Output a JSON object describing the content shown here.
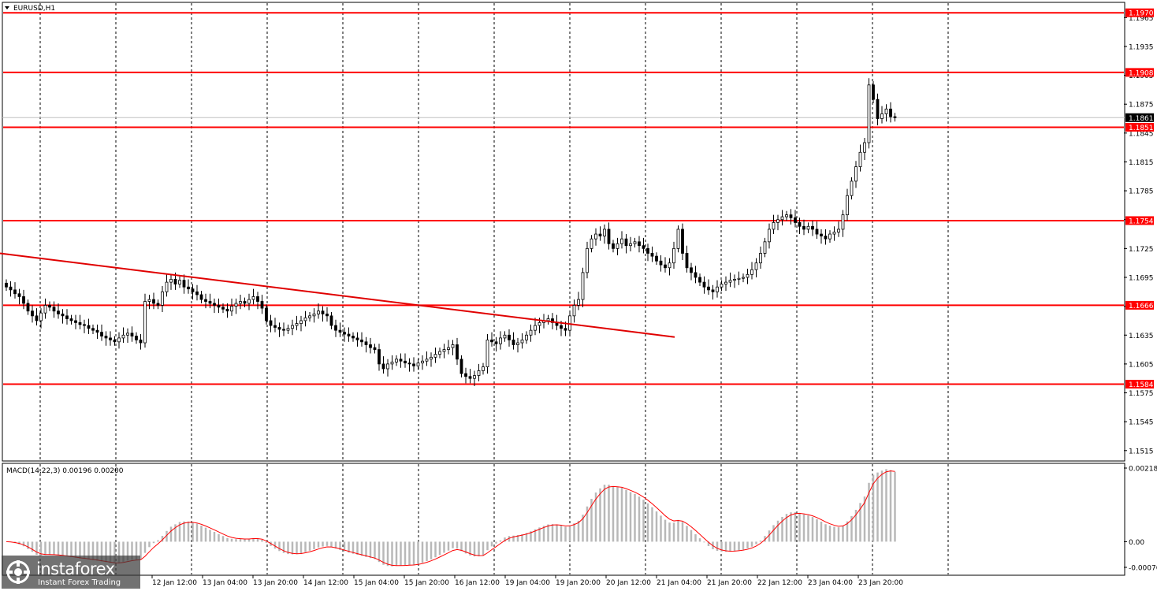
{
  "chart_data": [
    {
      "type": "candlestick",
      "symbol_label": "EURUSD,H1",
      "ylim": [
        1.1505,
        1.198
      ],
      "y_ticks": [
        "1.1965",
        "1.1935",
        "1.1905",
        "1.1875",
        "1.1845",
        "1.1815",
        "1.1785",
        "1.1755",
        "1.1725",
        "1.1695",
        "1.1665",
        "1.1635",
        "1.1605",
        "1.1575",
        "1.1545",
        "1.1515"
      ],
      "x_ticks": [
        "12 Jan 12:00",
        "13 Jan 04:00",
        "13 Jan 20:00",
        "14 Jan 12:00",
        "15 Jan 04:00",
        "15 Jan 20:00",
        "16 Jan 12:00",
        "19 Jan 04:00",
        "19 Jan 20:00",
        "20 Jan 12:00",
        "21 Jan 04:00",
        "21 Jan 20:00",
        "22 Jan 12:00",
        "23 Jan 04:00",
        "23 Jan 20:00"
      ],
      "current_price": "1.1861",
      "levels": [
        {
          "label": "1.1970",
          "value": 1.197
        },
        {
          "label": "1.1908",
          "value": 1.1908
        },
        {
          "label": "1.1851",
          "value": 1.1851
        },
        {
          "label": "1.1754",
          "value": 1.1754
        },
        {
          "label": "1.1666",
          "value": 1.1666
        },
        {
          "label": "1.1584",
          "value": 1.1584
        }
      ],
      "trendline": {
        "from": [
          0,
          1.172
        ],
        "to": [
          170,
          1.1633
        ]
      },
      "candles_close": [
        1.1685,
        1.1682,
        1.1678,
        1.1675,
        1.1668,
        1.166,
        1.1655,
        1.165,
        1.1658,
        1.1666,
        1.1664,
        1.166,
        1.1657,
        1.1655,
        1.1652,
        1.165,
        1.1648,
        1.1646,
        1.1645,
        1.1642,
        1.164,
        1.1638,
        1.1634,
        1.1632,
        1.163,
        1.1628,
        1.1632,
        1.1635,
        1.1637,
        1.1634,
        1.163,
        1.1627,
        1.167,
        1.1672,
        1.1668,
        1.1666,
        1.168,
        1.169,
        1.1693,
        1.1688,
        1.1692,
        1.1685,
        1.1683,
        1.168,
        1.1677,
        1.1672,
        1.167,
        1.1668,
        1.1666,
        1.1664,
        1.1662,
        1.166,
        1.1665,
        1.1668,
        1.167,
        1.1668,
        1.1672,
        1.1675,
        1.167,
        1.1663,
        1.165,
        1.1645,
        1.1643,
        1.1641,
        1.164,
        1.1642,
        1.1645,
        1.1647,
        1.165,
        1.1653,
        1.1655,
        1.1657,
        1.166,
        1.1657,
        1.1655,
        1.1645,
        1.164,
        1.1638,
        1.1636,
        1.1634,
        1.1632,
        1.163,
        1.1628,
        1.1625,
        1.1622,
        1.162,
        1.1605,
        1.16,
        1.1605,
        1.1607,
        1.161,
        1.1608,
        1.1606,
        1.1605,
        1.1603,
        1.1606,
        1.1608,
        1.161,
        1.1612,
        1.1615,
        1.1618,
        1.162,
        1.1622,
        1.1625,
        1.161,
        1.1595,
        1.1592,
        1.159,
        1.1593,
        1.1598,
        1.1602,
        1.163,
        1.1628,
        1.1626,
        1.1632,
        1.1635,
        1.163,
        1.1625,
        1.1627,
        1.163,
        1.1635,
        1.164,
        1.1645,
        1.1648,
        1.165,
        1.1652,
        1.1648,
        1.1645,
        1.1642,
        1.164,
        1.1655,
        1.1666,
        1.1672,
        1.17,
        1.1725,
        1.1735,
        1.174,
        1.1738,
        1.1745,
        1.173,
        1.1725,
        1.173,
        1.1735,
        1.1728,
        1.173,
        1.1732,
        1.1728,
        1.1725,
        1.172,
        1.1717,
        1.1712,
        1.1708,
        1.1705,
        1.171,
        1.1725,
        1.1745,
        1.172,
        1.1705,
        1.17,
        1.1695,
        1.169,
        1.1685,
        1.1682,
        1.168,
        1.1685,
        1.1688,
        1.169,
        1.1692,
        1.1693,
        1.1694,
        1.1695,
        1.1698,
        1.1703,
        1.171,
        1.172,
        1.1732,
        1.1745,
        1.1752,
        1.1755,
        1.1758,
        1.176,
        1.1757,
        1.1752,
        1.1748,
        1.1745,
        1.1748,
        1.1745,
        1.174,
        1.1738,
        1.1735,
        1.174,
        1.1742,
        1.1745,
        1.176,
        1.178,
        1.1795,
        1.181,
        1.1825,
        1.1835,
        1.1895,
        1.188,
        1.186,
        1.1865,
        1.187,
        1.1862,
        1.1861
      ]
    },
    {
      "type": "bar",
      "label": "MACD(14,22,3) 0.00196 0.00200",
      "ylim": [
        -0.00076,
        0.00218
      ],
      "y_ticks": [
        "0.00218",
        "0.00",
        "-0.00076"
      ],
      "hist_scale_in_price_units": 1.96e-05
    }
  ],
  "watermark": {
    "brand": "instaforex",
    "tagline": "Instant Forex Trading"
  }
}
